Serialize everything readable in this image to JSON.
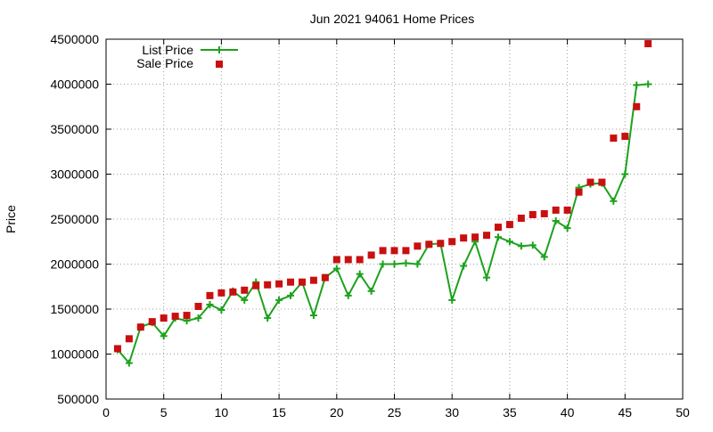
{
  "chart_data": {
    "type": "line",
    "title": "Jun 2021 94061 Home Prices",
    "xlabel": "",
    "ylabel": "Price",
    "xlim": [
      0,
      50
    ],
    "ylim": [
      500000,
      4500000
    ],
    "xticks": [
      0,
      5,
      10,
      15,
      20,
      25,
      30,
      35,
      40,
      45,
      50
    ],
    "yticks": [
      500000,
      1000000,
      1500000,
      2000000,
      2500000,
      3000000,
      3500000,
      4000000,
      4500000
    ],
    "grid": true,
    "legend_position": "top-left",
    "series": [
      {
        "name": "List Price",
        "style": "linespoints",
        "marker": "plus",
        "color": "#1ca21c",
        "x": [
          1,
          2,
          3,
          4,
          5,
          6,
          7,
          8,
          9,
          10,
          11,
          12,
          13,
          14,
          15,
          16,
          17,
          18,
          19,
          20,
          21,
          22,
          23,
          24,
          25,
          26,
          27,
          28,
          29,
          30,
          31,
          32,
          33,
          34,
          35,
          36,
          37,
          38,
          39,
          40,
          41,
          42,
          43,
          44,
          45,
          46,
          47
        ],
        "values": [
          1050000,
          900000,
          1300000,
          1350000,
          1200000,
          1400000,
          1370000,
          1400000,
          1550000,
          1490000,
          1700000,
          1600000,
          1800000,
          1400000,
          1600000,
          1650000,
          1800000,
          1430000,
          1850000,
          1950000,
          1650000,
          1890000,
          1700000,
          2000000,
          2000000,
          2010000,
          2000000,
          2220000,
          2230000,
          1600000,
          1980000,
          2250000,
          1850000,
          2300000,
          2250000,
          2200000,
          2210000,
          2080000,
          2480000,
          2400000,
          2850000,
          2890000,
          2900000,
          2700000,
          3000000,
          3990000,
          4000000
        ]
      },
      {
        "name": "Sale Price",
        "style": "points",
        "marker": "square",
        "color": "#c81010",
        "x": [
          1,
          2,
          3,
          4,
          5,
          6,
          7,
          8,
          9,
          10,
          11,
          12,
          13,
          14,
          15,
          16,
          17,
          18,
          19,
          20,
          21,
          22,
          23,
          24,
          25,
          26,
          27,
          28,
          29,
          30,
          31,
          32,
          33,
          34,
          35,
          36,
          37,
          38,
          39,
          40,
          41,
          42,
          43,
          44,
          45,
          46,
          47
        ],
        "values": [
          1060000,
          1170000,
          1300000,
          1360000,
          1400000,
          1420000,
          1430000,
          1530000,
          1650000,
          1680000,
          1690000,
          1710000,
          1760000,
          1770000,
          1780000,
          1800000,
          1800000,
          1820000,
          1850000,
          2050000,
          2050000,
          2050000,
          2100000,
          2150000,
          2150000,
          2150000,
          2200000,
          2220000,
          2230000,
          2250000,
          2290000,
          2300000,
          2320000,
          2410000,
          2440000,
          2510000,
          2550000,
          2560000,
          2600000,
          2600000,
          2800000,
          2910000,
          2910000,
          3400000,
          3420000,
          3750000,
          4450000
        ]
      }
    ]
  }
}
